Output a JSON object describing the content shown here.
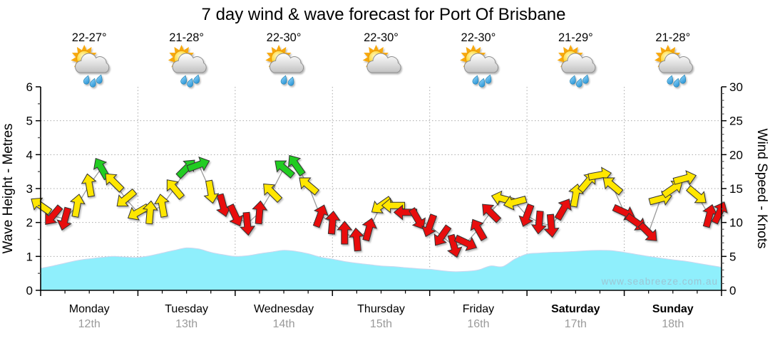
{
  "title": "7 day wind & wave forecast for Port Of Brisbane",
  "watermark": "www.seabreeze.com.au",
  "days": [
    {
      "name": "Monday",
      "date": "12th",
      "temp": "22-27°",
      "icon": "sun-cloud-showers",
      "bold": false
    },
    {
      "name": "Tuesday",
      "date": "13th",
      "temp": "21-28°",
      "icon": "sun-cloud-showers",
      "bold": false
    },
    {
      "name": "Wednesday",
      "date": "14th",
      "temp": "22-30°",
      "icon": "sun-cloud-light-showers",
      "bold": false
    },
    {
      "name": "Thursday",
      "date": "15th",
      "temp": "22-30°",
      "icon": "sun-cloud",
      "bold": false
    },
    {
      "name": "Friday",
      "date": "16th",
      "temp": "22-30°",
      "icon": "sun-cloud-showers",
      "bold": false
    },
    {
      "name": "Saturday",
      "date": "17th",
      "temp": "21-29°",
      "icon": "sun-cloud-showers",
      "bold": true
    },
    {
      "name": "Sunday",
      "date": "18th",
      "temp": "21-28°",
      "icon": "sun-cloud-showers",
      "bold": true
    }
  ],
  "chart_data": {
    "type": "area",
    "x_unit": "hours_from_monday_00",
    "x_range_hours": [
      0,
      168
    ],
    "grid": true,
    "left_axis": {
      "label": "Wave Height - Metres",
      "ticks": [
        0,
        1,
        2,
        3,
        4,
        5,
        6
      ],
      "range": [
        0,
        6
      ]
    },
    "right_axis": {
      "label": "Wind Speed - Knots",
      "ticks": [
        0,
        5,
        10,
        15,
        20,
        25,
        30
      ],
      "range": [
        0,
        30
      ]
    },
    "wind_points_format": "[hours, knots, arrow_heading_deg(0=N), color_key]",
    "wind": [
      [
        0,
        12.5,
        305,
        "y"
      ],
      [
        3,
        11,
        220,
        "r"
      ],
      [
        6,
        10.5,
        195,
        "r"
      ],
      [
        9,
        12.5,
        10,
        "y"
      ],
      [
        12,
        15.5,
        350,
        "y"
      ],
      [
        15,
        18,
        330,
        "g"
      ],
      [
        18,
        16,
        315,
        "y"
      ],
      [
        21,
        13.5,
        230,
        "y"
      ],
      [
        24,
        11.5,
        240,
        "y"
      ],
      [
        27,
        11.5,
        5,
        "y"
      ],
      [
        30,
        12.5,
        350,
        "y"
      ],
      [
        33,
        15,
        320,
        "y"
      ],
      [
        36,
        18,
        45,
        "g"
      ],
      [
        39,
        18.5,
        70,
        "g"
      ],
      [
        42,
        14.5,
        170,
        "y"
      ],
      [
        45,
        12.5,
        165,
        "r"
      ],
      [
        48,
        11,
        155,
        "r"
      ],
      [
        51,
        9.8,
        175,
        "r"
      ],
      [
        54,
        11.5,
        5,
        "r"
      ],
      [
        57,
        14.5,
        315,
        "y"
      ],
      [
        60,
        18,
        310,
        "g"
      ],
      [
        63,
        18.5,
        325,
        "g"
      ],
      [
        66,
        15.5,
        310,
        "y"
      ],
      [
        69,
        11,
        20,
        "r"
      ],
      [
        72,
        10,
        5,
        "r"
      ],
      [
        75,
        8.5,
        0,
        "r"
      ],
      [
        78,
        7.5,
        355,
        "r"
      ],
      [
        81,
        9,
        15,
        "r"
      ],
      [
        84,
        12.5,
        235,
        "y"
      ],
      [
        87,
        12.5,
        270,
        "y"
      ],
      [
        90,
        11.5,
        270,
        "r"
      ],
      [
        93,
        10.5,
        150,
        "r"
      ],
      [
        96,
        9.5,
        200,
        "r"
      ],
      [
        99,
        8,
        215,
        "r"
      ],
      [
        102,
        6.5,
        165,
        "r"
      ],
      [
        105,
        7,
        115,
        "r"
      ],
      [
        108,
        9,
        330,
        "r"
      ],
      [
        111,
        11.5,
        315,
        "r"
      ],
      [
        114,
        13.5,
        285,
        "y"
      ],
      [
        117,
        13,
        255,
        "y"
      ],
      [
        120,
        11,
        200,
        "r"
      ],
      [
        123,
        10,
        185,
        "r"
      ],
      [
        126,
        9.5,
        175,
        "r"
      ],
      [
        129,
        12,
        30,
        "r"
      ],
      [
        132,
        14,
        10,
        "y"
      ],
      [
        135,
        16,
        40,
        "y"
      ],
      [
        138,
        17,
        80,
        "y"
      ],
      [
        141,
        15.5,
        310,
        "y"
      ],
      [
        144,
        11.5,
        115,
        "r"
      ],
      [
        147,
        10,
        125,
        "r"
      ],
      [
        150,
        8.5,
        135,
        "r"
      ],
      [
        153,
        13.5,
        75,
        "y"
      ],
      [
        156,
        15,
        55,
        "y"
      ],
      [
        159,
        16.5,
        75,
        "y"
      ],
      [
        162,
        14,
        130,
        "y"
      ],
      [
        165,
        11,
        15,
        "r"
      ],
      [
        167.5,
        11.5,
        25,
        "r"
      ]
    ],
    "wave_points_format": "[hours, metres]",
    "wave": [
      [
        0,
        0.65
      ],
      [
        3,
        0.72
      ],
      [
        6,
        0.8
      ],
      [
        9,
        0.88
      ],
      [
        12,
        0.93
      ],
      [
        15,
        0.97
      ],
      [
        18,
        1.0
      ],
      [
        21,
        0.98
      ],
      [
        24,
        0.97
      ],
      [
        27,
        1.02
      ],
      [
        30,
        1.1
      ],
      [
        33,
        1.18
      ],
      [
        36,
        1.25
      ],
      [
        39,
        1.22
      ],
      [
        42,
        1.12
      ],
      [
        45,
        1.05
      ],
      [
        48,
        1.0
      ],
      [
        51,
        1.02
      ],
      [
        54,
        1.08
      ],
      [
        57,
        1.13
      ],
      [
        60,
        1.18
      ],
      [
        63,
        1.15
      ],
      [
        66,
        1.08
      ],
      [
        69,
        0.98
      ],
      [
        72,
        0.92
      ],
      [
        75,
        0.85
      ],
      [
        78,
        0.8
      ],
      [
        81,
        0.76
      ],
      [
        84,
        0.72
      ],
      [
        87,
        0.7
      ],
      [
        90,
        0.67
      ],
      [
        93,
        0.64
      ],
      [
        96,
        0.62
      ],
      [
        99,
        0.58
      ],
      [
        102,
        0.55
      ],
      [
        105,
        0.56
      ],
      [
        108,
        0.6
      ],
      [
        111,
        0.72
      ],
      [
        114,
        0.7
      ],
      [
        117,
        0.92
      ],
      [
        120,
        1.07
      ],
      [
        123,
        1.1
      ],
      [
        126,
        1.12
      ],
      [
        129,
        1.13
      ],
      [
        132,
        1.15
      ],
      [
        135,
        1.17
      ],
      [
        138,
        1.18
      ],
      [
        141,
        1.17
      ],
      [
        144,
        1.12
      ],
      [
        147,
        1.06
      ],
      [
        150,
        1.0
      ],
      [
        153,
        0.95
      ],
      [
        156,
        0.9
      ],
      [
        159,
        0.86
      ],
      [
        162,
        0.8
      ],
      [
        165,
        0.74
      ],
      [
        168,
        0.68
      ]
    ],
    "wind_colors": {
      "y": "#FFE600",
      "r": "#E81010",
      "g": "#22CC22"
    },
    "wave_fill": "#8FEFFC",
    "wave_edge": "#CBD6EE",
    "grid_color": "#AAAAAA",
    "line_color": "#9A9A9A"
  }
}
